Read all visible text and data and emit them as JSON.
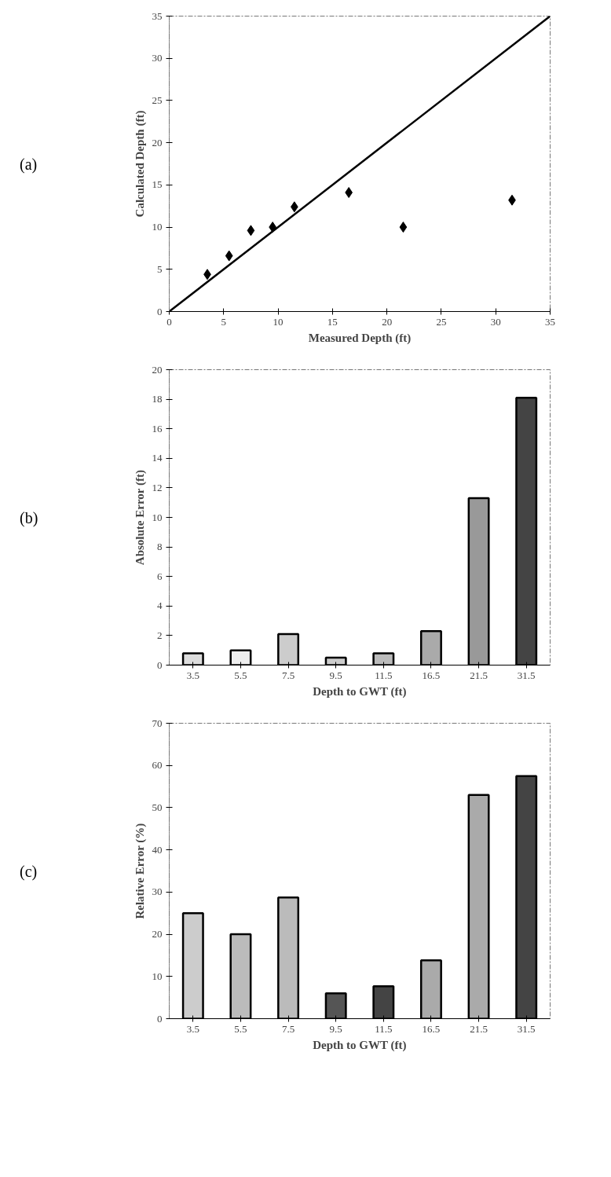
{
  "chart_data": [
    {
      "type": "scatter",
      "annotations": [
        "(a)"
      ],
      "xlabel": "Measured Depth (ft)",
      "ylabel": "Calculated Depth (ft)",
      "xlim": [
        0,
        35
      ],
      "ylim": [
        0,
        35
      ],
      "xticks": [
        0,
        5,
        10,
        15,
        20,
        25,
        30,
        35
      ],
      "yticks": [
        0,
        5,
        10,
        15,
        20,
        25,
        30,
        35
      ],
      "grid": false,
      "series": [
        {
          "type": "scatter",
          "marker": "diamond",
          "color": "#000000",
          "x": [
            3.5,
            5.5,
            7.5,
            9.5,
            11.5,
            16.5,
            21.5,
            31.5
          ],
          "values": [
            4.4,
            6.6,
            9.6,
            10,
            12.4,
            14.1,
            10,
            13.2
          ]
        },
        {
          "type": "line",
          "line_style": "solid",
          "color": "#000000",
          "x": [
            0,
            35
          ],
          "values": [
            0,
            35
          ]
        }
      ]
    },
    {
      "type": "bar",
      "annotations": [
        "(b)"
      ],
      "xlabel": "Depth to GWT (ft)",
      "ylabel": "Absolute Error (ft)",
      "categories": [
        "3.5",
        "5.5",
        "7.5",
        "9.5",
        "11.5",
        "16.5",
        "21.5",
        "31.5"
      ],
      "values": [
        0.8,
        1.0,
        2.1,
        0.5,
        0.8,
        2.3,
        11.3,
        18.1
      ],
      "colors": [
        "#dddddd",
        "#eeeeee",
        "#cccccc",
        "#cccccc",
        "#bbbbbb",
        "#aaaaaa",
        "#999999",
        "#444444"
      ],
      "ylim": [
        0,
        20
      ],
      "yticks": [
        0,
        2,
        4,
        6,
        8,
        10,
        12,
        14,
        16,
        18,
        20
      ],
      "grid": false
    },
    {
      "type": "bar",
      "annotations": [
        "(c)"
      ],
      "xlabel": "Depth to GWT (ft)",
      "ylabel": "Relative Error (%)",
      "categories": [
        "3.5",
        "5.5",
        "7.5",
        "9.5",
        "11.5",
        "16.5",
        "21.5",
        "31.5"
      ],
      "values": [
        25,
        20,
        28.7,
        6,
        7.7,
        13.8,
        53,
        57.5
      ],
      "colors": [
        "#cccccc",
        "#bbbbbb",
        "#bbbbbb",
        "#555555",
        "#444444",
        "#aaaaaa",
        "#aaaaaa",
        "#444444"
      ],
      "ylim": [
        0,
        70
      ],
      "yticks": [
        0,
        10,
        20,
        30,
        40,
        50,
        60,
        70
      ],
      "grid": false
    }
  ]
}
